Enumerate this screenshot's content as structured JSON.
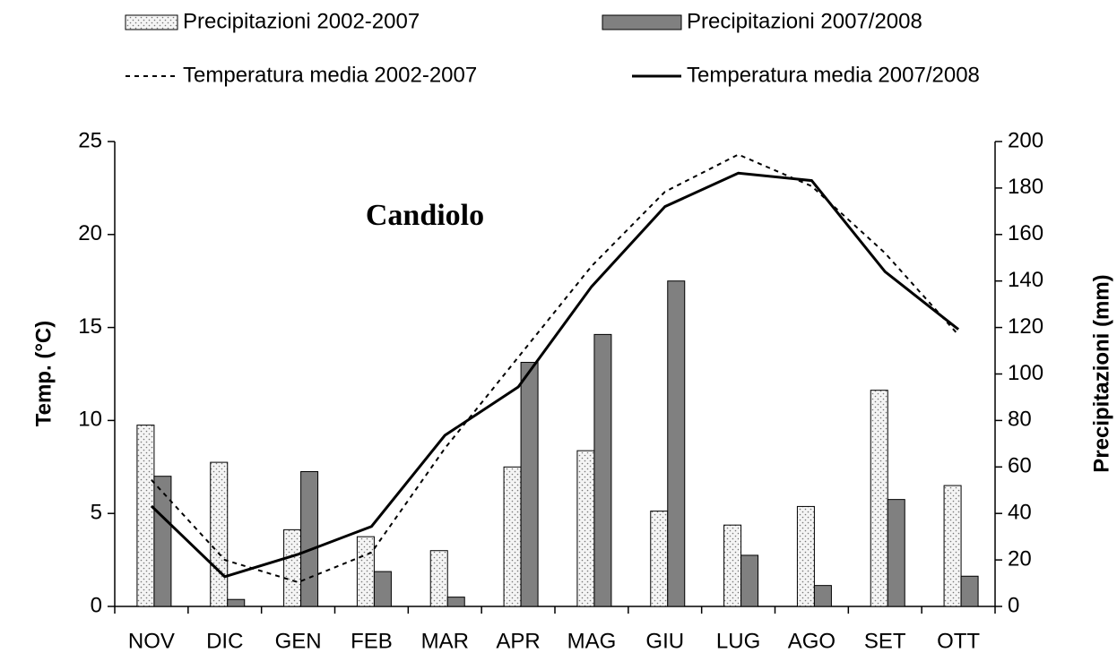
{
  "chart_data": {
    "type": "bar",
    "title": "Candiolo",
    "ylabel": "Temp. (°C)",
    "y2label": "Precipitazioni (mm)",
    "categories": [
      "NOV",
      "DIC",
      "GEN",
      "FEB",
      "MAR",
      "APR",
      "MAG",
      "GIU",
      "LUG",
      "AGO",
      "SET",
      "OTT"
    ],
    "ylim": [
      0,
      25
    ],
    "yticks": [
      0,
      5,
      10,
      15,
      20,
      25
    ],
    "y2lim": [
      0,
      200
    ],
    "y2ticks": [
      0,
      20,
      40,
      60,
      80,
      100,
      120,
      140,
      160,
      180,
      200
    ],
    "series": [
      {
        "name": "Precipitazioni 2002-2007",
        "type": "bar",
        "axis": "y2",
        "color": "#f4f4f4",
        "pattern": "dots",
        "values": [
          78,
          62,
          33,
          30,
          24,
          60,
          67,
          41,
          35,
          43,
          93,
          52
        ]
      },
      {
        "name": "Precipitazioni 2007/2008",
        "type": "bar",
        "axis": "y2",
        "color": "#808080",
        "values": [
          56,
          3,
          58,
          15,
          4,
          105,
          117,
          140,
          22,
          9,
          46,
          13
        ]
      },
      {
        "name": "Temperatura media 2002-2007",
        "type": "line",
        "axis": "y",
        "color": "#000000",
        "dash": "dotted",
        "values": [
          6.8,
          2.5,
          1.3,
          2.9,
          8.5,
          13.4,
          18.3,
          22.3,
          24.3,
          22.6,
          19.0,
          14.6
        ]
      },
      {
        "name": "Temperatura media 2007/2008",
        "type": "line",
        "axis": "y",
        "color": "#000000",
        "dash": "solid",
        "values": [
          5.4,
          1.6,
          2.8,
          4.3,
          9.2,
          11.8,
          17.2,
          21.5,
          23.3,
          22.9,
          18.0,
          14.9
        ]
      }
    ]
  }
}
